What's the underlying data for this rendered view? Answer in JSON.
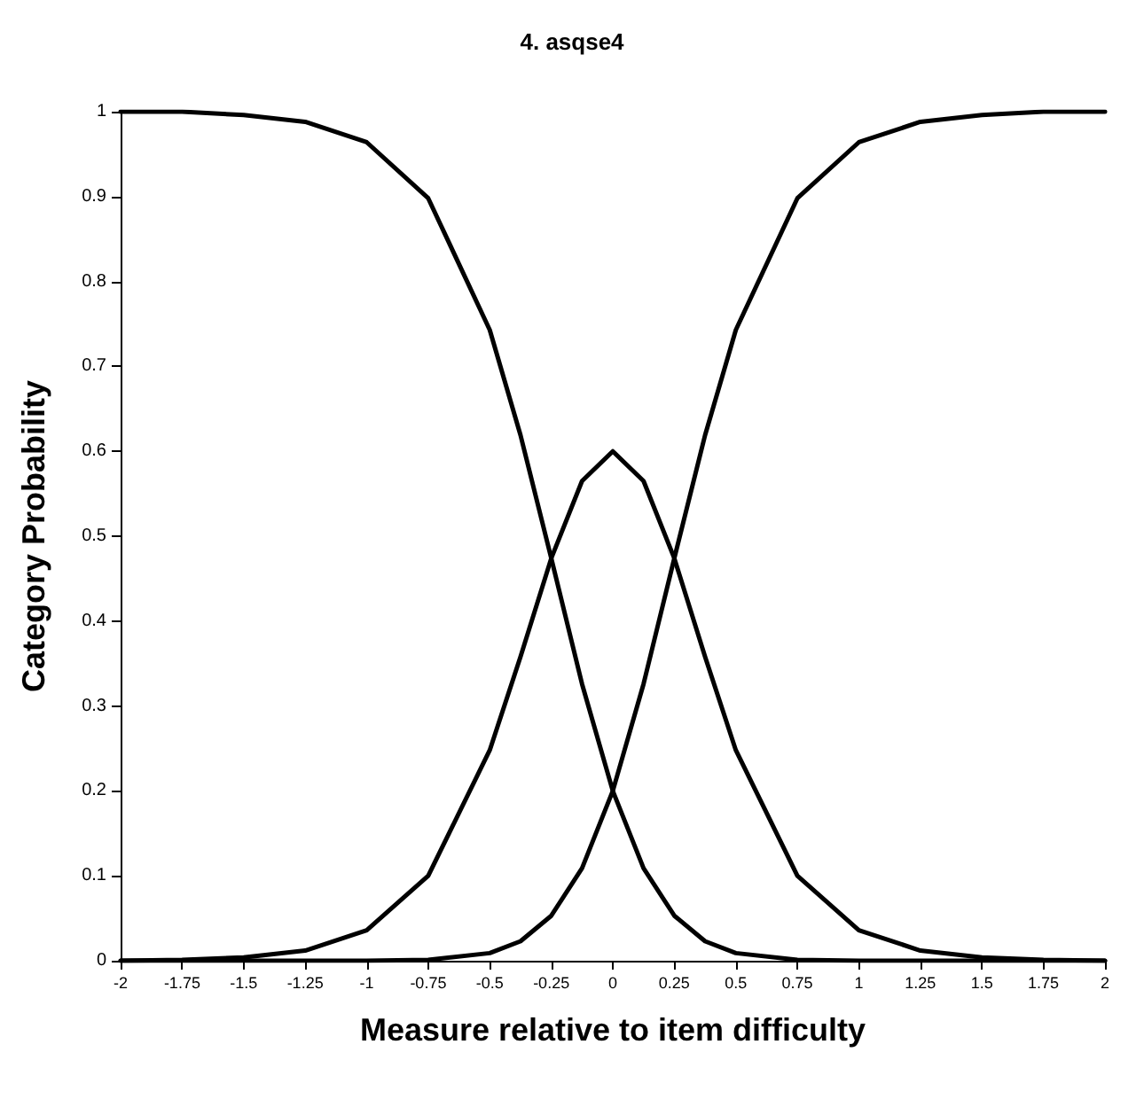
{
  "chart_data": {
    "type": "line",
    "title": "4. asqse4",
    "xlabel": "Measure relative to item difficulty",
    "ylabel": "Category Probability",
    "x": [
      -2,
      -1.75,
      -1.5,
      -1.25,
      -1,
      -0.75,
      -0.5,
      -0.375,
      -0.25,
      -0.125,
      0,
      0.125,
      0.25,
      0.375,
      0.5,
      0.75,
      1,
      1.25,
      1.5,
      1.75,
      2
    ],
    "series": [
      {
        "color": "#000000",
        "values": [
          1,
          1,
          0.996,
          0.988,
          0.964,
          0.898,
          0.743,
          0.619,
          0.474,
          0.326,
          0.2,
          0.109,
          0.053,
          0.023,
          0.009,
          0.001,
          0,
          0,
          0,
          0,
          0
        ]
      },
      {
        "color": "#000000",
        "values": [
          0,
          0.001,
          0.004,
          0.012,
          0.036,
          0.1,
          0.248,
          0.358,
          0.474,
          0.565,
          0.6,
          0.565,
          0.474,
          0.358,
          0.248,
          0.1,
          0.036,
          0.012,
          0.004,
          0.001,
          0
        ]
      },
      {
        "color": "#000000",
        "values": [
          0,
          0,
          0,
          0,
          0,
          0.001,
          0.009,
          0.023,
          0.053,
          0.109,
          0.2,
          0.326,
          0.474,
          0.619,
          0.743,
          0.898,
          0.964,
          0.988,
          0.996,
          1,
          1
        ]
      }
    ],
    "xlim": [
      -2,
      2
    ],
    "xticks": [
      -2,
      -1.75,
      -1.5,
      -1.25,
      -1,
      -0.75,
      -0.5,
      -0.25,
      0,
      0.25,
      0.5,
      0.75,
      1,
      1.25,
      1.5,
      1.75,
      2
    ],
    "ylim": [
      0,
      1
    ],
    "yticks": [
      0,
      0.1,
      0.2,
      0.3,
      0.4,
      0.5,
      0.6,
      0.7,
      0.8,
      0.9,
      1
    ],
    "grid": false,
    "marker": "none",
    "line_style": "solid"
  }
}
